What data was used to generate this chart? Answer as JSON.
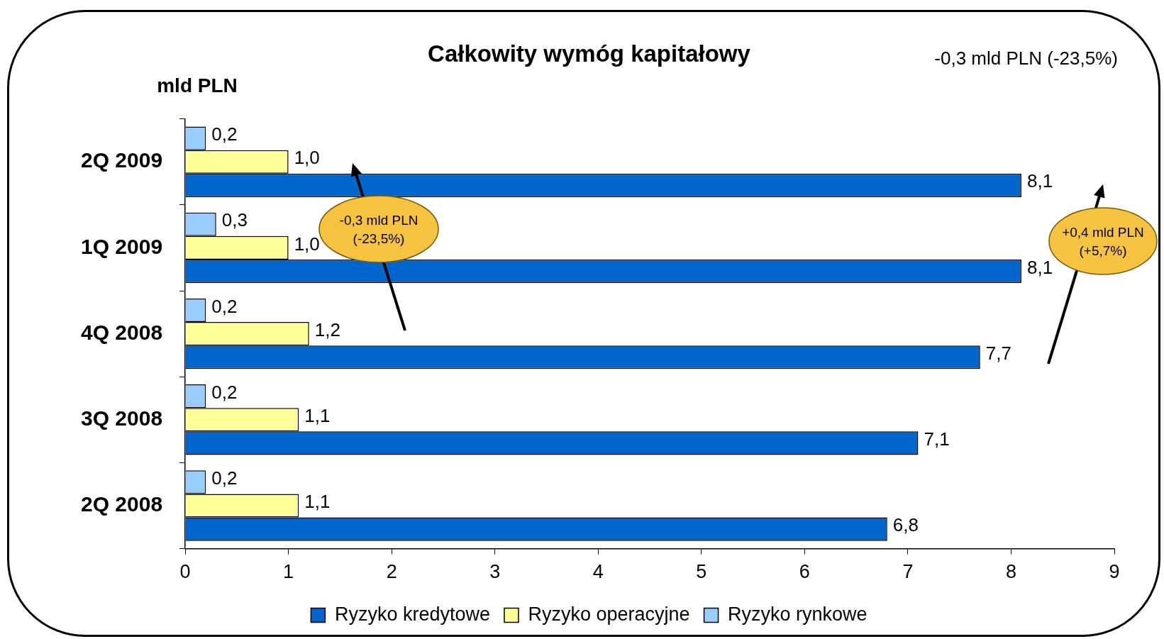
{
  "chart_data": {
    "type": "bar",
    "orientation": "horizontal",
    "title": "Całkowity wymóg kapitałowy",
    "ylabel": "mld PLN",
    "categories": [
      "2Q 2009",
      "1Q 2009",
      "4Q 2008",
      "3Q 2008",
      "2Q 2008"
    ],
    "series": [
      {
        "name": "Ryzyko rynkowe",
        "color": "#99ccff",
        "values": [
          0.2,
          0.3,
          0.2,
          0.2,
          0.2
        ],
        "value_labels": [
          "0,2",
          "0,3",
          "0,2",
          "0,2",
          "0,2"
        ]
      },
      {
        "name": "Ryzyko operacyjne",
        "color": "#ffff99",
        "values": [
          1.0,
          1.0,
          1.2,
          1.1,
          1.1
        ],
        "value_labels": [
          "1,0",
          "1,0",
          "1,2",
          "1,1",
          "1,1"
        ]
      },
      {
        "name": "Ryzyko kredytowe",
        "color": "#0066cc",
        "values": [
          8.1,
          8.1,
          7.7,
          7.1,
          6.8
        ],
        "value_labels": [
          "8,1",
          "8,1",
          "7,7",
          "7,1",
          "6,8"
        ]
      }
    ],
    "xlim": [
      0,
      9
    ],
    "xticks": [
      0,
      1,
      2,
      3,
      4,
      5,
      6,
      7,
      8,
      9
    ],
    "legend": "bottom",
    "annotations": [
      "-0,3 mld PLN (-23,5%)",
      "-0,3 mld PLN (-23,5%)",
      "+0,4 mld PLN (+5,7%)"
    ]
  }
}
